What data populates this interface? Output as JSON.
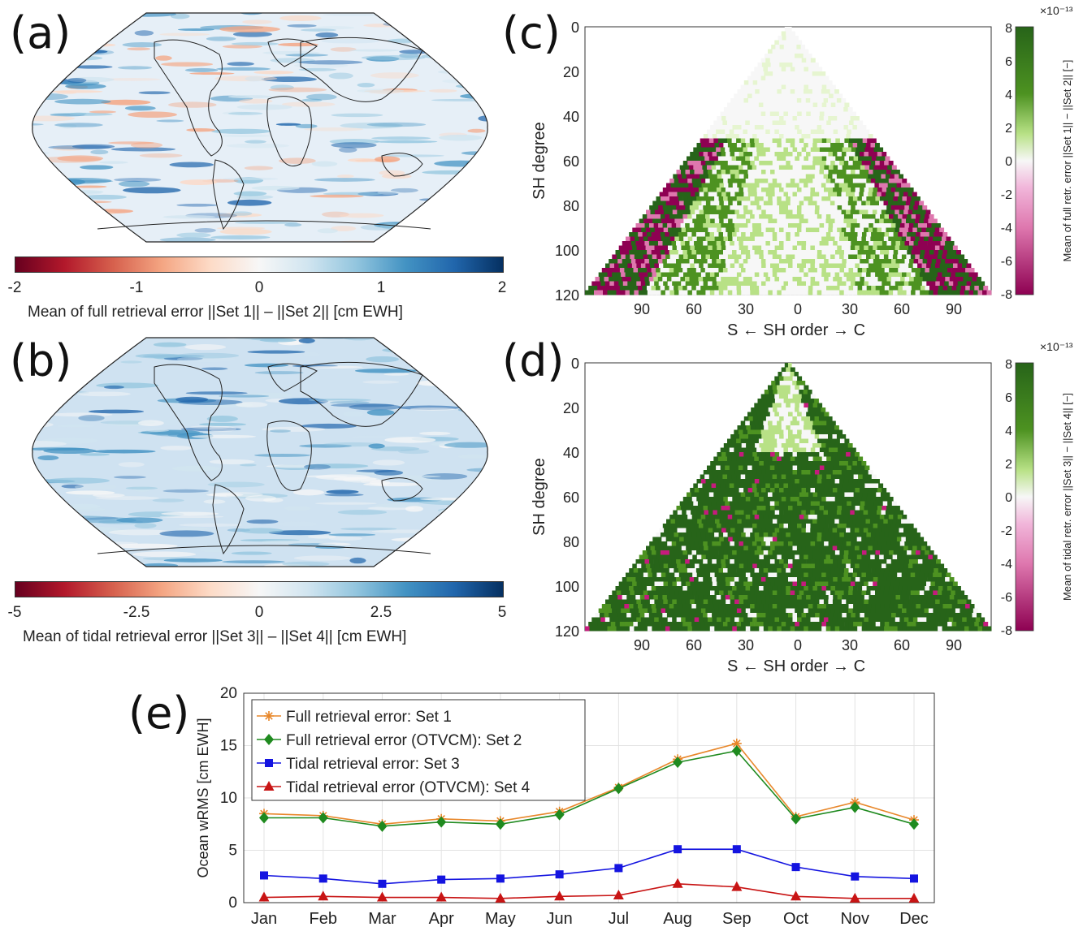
{
  "panels": {
    "a": {
      "letter": "(a)"
    },
    "b": {
      "letter": "(b)"
    },
    "c": {
      "letter": "(c)"
    },
    "d": {
      "letter": "(d)"
    },
    "e": {
      "letter": "(e)"
    }
  },
  "colorbar_a": {
    "label": "Mean of full retrieval error ||Set 1|| – ||Set 2|| [cm EWH]",
    "ticks": [
      "-2",
      "-1",
      "0",
      "1",
      "2"
    ]
  },
  "colorbar_b": {
    "label": "Mean of tidal retrieval error ||Set 3|| – ||Set 4|| [cm EWH]",
    "ticks": [
      "-5",
      "-2.5",
      "0",
      "2.5",
      "5"
    ]
  },
  "tri_c": {
    "ylabel": "SH degree",
    "xlabel": "S  ←  SH order  → C",
    "yticks": [
      "0",
      "20",
      "40",
      "60",
      "80",
      "100",
      "120"
    ],
    "xticks": [
      "90",
      "60",
      "30",
      "0",
      "30",
      "60",
      "90"
    ],
    "cbar_label": "Mean of full retr. error ||Set 1|| − ||Set 2|| [−]",
    "cbar_exp": "×10⁻¹³",
    "cbar_ticks": [
      "8",
      "6",
      "4",
      "2",
      "0",
      "-2",
      "-4",
      "-6",
      "-8"
    ]
  },
  "tri_d": {
    "ylabel": "SH degree",
    "xlabel": "S  ←  SH order  → C",
    "yticks": [
      "0",
      "20",
      "40",
      "60",
      "80",
      "100",
      "120"
    ],
    "xticks": [
      "90",
      "60",
      "30",
      "0",
      "30",
      "60",
      "90"
    ],
    "cbar_label": "Mean of tidal retr. error ||Set 3|| − ||Set 4|| [−]",
    "cbar_exp": "×10⁻¹³",
    "cbar_ticks": [
      "8",
      "6",
      "4",
      "2",
      "0",
      "-2",
      "-4",
      "-6",
      "-8"
    ]
  },
  "chart_data": {
    "type": "line",
    "title": "",
    "xlabel": "",
    "ylabel": "Ocean wRMS [cm EWH]",
    "ylim": [
      0,
      20
    ],
    "yticks": [
      0,
      5,
      10,
      15,
      20
    ],
    "grid": true,
    "legend_position": "top-left",
    "categories": [
      "Jan",
      "Feb",
      "Mar",
      "Apr",
      "May",
      "Jun",
      "Jul",
      "Aug",
      "Sep",
      "Oct",
      "Nov",
      "Dec"
    ],
    "series": [
      {
        "name": "Full retrieval error: Set 1",
        "color": "#e8872a",
        "marker": "star",
        "values": [
          8.5,
          8.3,
          7.5,
          8.0,
          7.8,
          8.7,
          11.0,
          13.7,
          15.2,
          8.2,
          9.6,
          7.9
        ]
      },
      {
        "name": "Full retrieval error (OTVCM): Set 2",
        "color": "#1f8a1f",
        "marker": "diamond",
        "values": [
          8.1,
          8.1,
          7.3,
          7.7,
          7.5,
          8.4,
          10.9,
          13.4,
          14.5,
          8.0,
          9.1,
          7.5
        ]
      },
      {
        "name": "Tidal retrieval error: Set 3",
        "color": "#1414e0",
        "marker": "square",
        "values": [
          2.6,
          2.3,
          1.8,
          2.2,
          2.3,
          2.7,
          3.3,
          5.1,
          5.1,
          3.4,
          2.5,
          2.3
        ]
      },
      {
        "name": "Tidal retrieval error (OTVCM): Set 4",
        "color": "#c81414",
        "marker": "triangle",
        "values": [
          0.5,
          0.6,
          0.5,
          0.5,
          0.4,
          0.6,
          0.7,
          1.8,
          1.5,
          0.6,
          0.4,
          0.4
        ]
      }
    ]
  }
}
